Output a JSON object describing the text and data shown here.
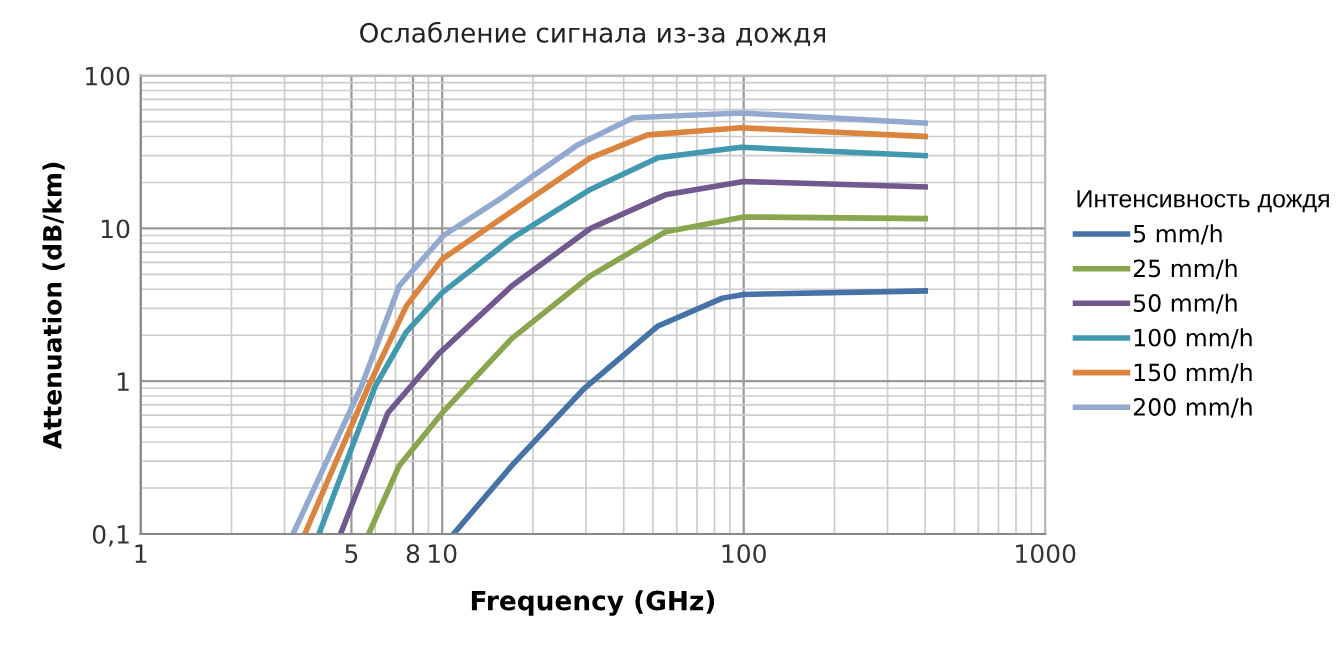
{
  "chart_data": {
    "type": "line",
    "title": "Ослабление сигнала из-за дождя",
    "xlabel": "Frequency (GHz)",
    "ylabel": "Attenuation (dB/km)",
    "legend_title": "Интенсивность дождя",
    "log": "xy",
    "grid": true,
    "legend": "right",
    "marker": "none",
    "line_style": "solid",
    "xlim": [
      1,
      1000
    ],
    "ylim": [
      0.1,
      100
    ],
    "xticks": [
      1,
      5,
      8,
      10,
      100,
      1000
    ],
    "yticks": [
      {
        "value": 0.1,
        "label": "0,1"
      },
      1,
      10,
      100
    ],
    "series": [
      {
        "name": "5 mm/h",
        "color": "#4572a7",
        "x": [
          10.9,
          17,
          29.5,
          52,
          85,
          100,
          400
        ],
        "values": [
          0.1,
          0.28,
          0.89,
          2.3,
          3.5,
          3.7,
          3.9
        ]
      },
      {
        "name": "25 mm/h",
        "color": "#89a54e",
        "x": [
          5.7,
          7.2,
          10,
          17,
          31,
          55,
          100,
          400
        ],
        "values": [
          0.1,
          0.28,
          0.62,
          1.9,
          4.9,
          9.5,
          11.9,
          11.6
        ]
      },
      {
        "name": "50 mm/h",
        "color": "#71588f",
        "x": [
          4.6,
          6.6,
          9.7,
          17,
          31,
          55,
          100,
          400
        ],
        "values": [
          0.1,
          0.62,
          1.5,
          4.2,
          10,
          16.6,
          20.3,
          18.7
        ]
      },
      {
        "name": "100 mm/h",
        "color": "#4198af",
        "x": [
          3.9,
          6.0,
          7.6,
          10,
          17,
          31,
          52,
          98,
          400
        ],
        "values": [
          0.1,
          0.93,
          2.1,
          3.8,
          8.6,
          18,
          29,
          34,
          30
        ]
      },
      {
        "name": "150 mm/h",
        "color": "#db843d",
        "x": [
          3.5,
          5.7,
          7.6,
          10,
          17,
          31,
          48,
          98,
          400
        ],
        "values": [
          0.1,
          0.93,
          3.1,
          6.3,
          12.9,
          29,
          41,
          45.6,
          40
        ]
      },
      {
        "name": "200 mm/h",
        "color": "#93a9cf",
        "x": [
          3.2,
          5.4,
          7.2,
          10.1,
          15.7,
          28,
          43,
          98,
          400
        ],
        "values": [
          0.1,
          0.93,
          4.2,
          9,
          15.8,
          35,
          53,
          57,
          49
        ]
      }
    ]
  }
}
